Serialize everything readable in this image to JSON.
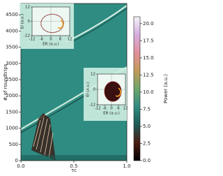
{
  "chart_data": {
    "type": "heatmap",
    "xlabel": "τc",
    "ylabel": "# of roundtrips",
    "xlim": [
      0,
      1
    ],
    "xticks": [
      {
        "value": 0,
        "label": "0.0"
      },
      {
        "value": 0.5,
        "label": "0.5"
      },
      {
        "value": 1,
        "label": "1.0"
      }
    ],
    "ylim": [
      0,
      4850
    ],
    "yticks": [
      0,
      500,
      1000,
      1500,
      2000,
      2500,
      3000,
      3500,
      4000,
      4500
    ],
    "colorbar": {
      "label": "Power (a.u.)",
      "lim": [
        0,
        21
      ],
      "ticks": [
        {
          "value": 0,
          "label": "0.0"
        },
        {
          "value": 2.5,
          "label": "2.5"
        },
        {
          "value": 5,
          "label": "5.0"
        },
        {
          "value": 7.5,
          "label": "7.5"
        },
        {
          "value": 10,
          "label": "10.0"
        },
        {
          "value": 12.5,
          "label": "12.5"
        },
        {
          "value": 15,
          "label": "15.0"
        },
        {
          "value": 17.5,
          "label": "17.5"
        },
        {
          "value": 20,
          "label": "20.0"
        }
      ],
      "colors": [
        "#000000",
        "#4a1c12",
        "#1d5a54",
        "#2f8c82",
        "#6ea66a",
        "#c49a5a",
        "#e2909a",
        "#d6aee0",
        "#f6f4f8"
      ]
    },
    "insets": [
      {
        "xlabel": "ER (a.u.)",
        "ylabel": "EI (a.u.)",
        "xlim": [
          -12,
          12
        ],
        "ylim": [
          -12,
          12
        ],
        "xticks": [
          -12,
          -6,
          0,
          6,
          12
        ],
        "yticks": [
          -12,
          0,
          12
        ]
      },
      {
        "xlabel": "ER (a.u.)",
        "ylabel": "EI (a.u.)",
        "xlim": [
          -12,
          12
        ],
        "ylim": [
          -12,
          12
        ],
        "xticks": [
          -12,
          -6,
          0,
          6,
          12
        ],
        "yticks": [
          -12,
          0,
          12
        ]
      }
    ]
  }
}
